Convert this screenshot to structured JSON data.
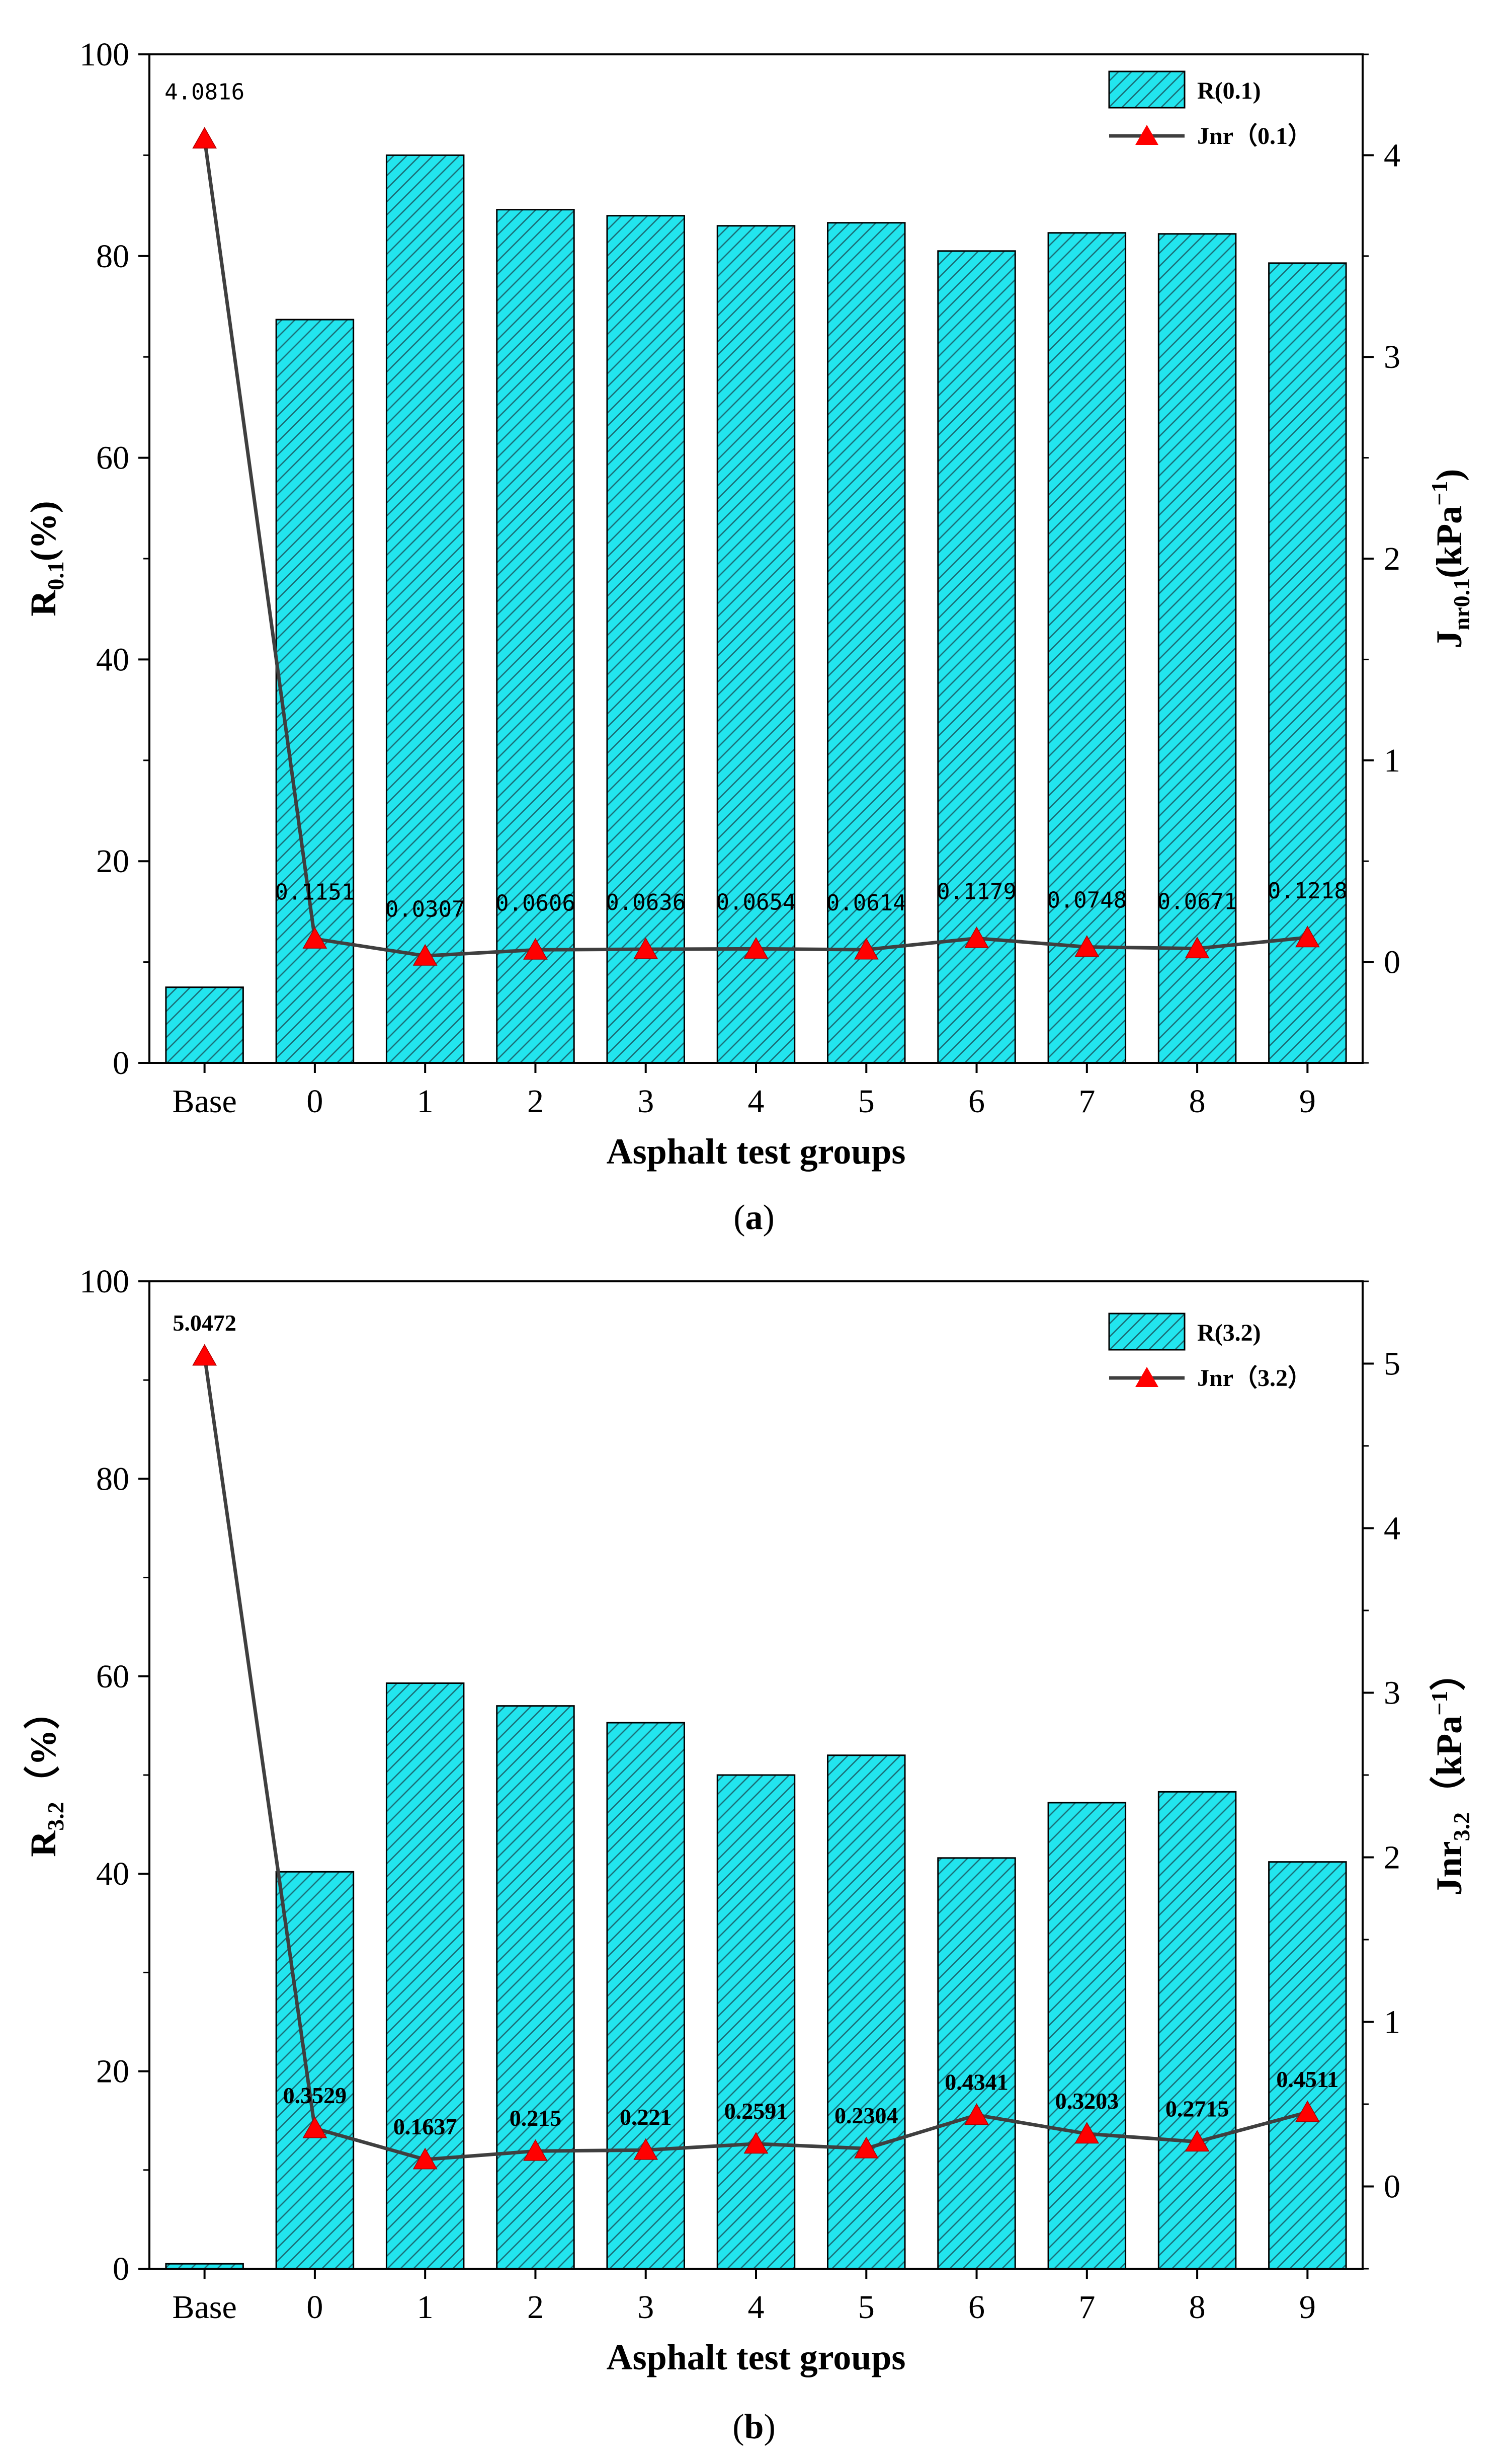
{
  "colors": {
    "bar_fill": "#22E5EE",
    "bar_hatch": "#1A6F78",
    "line": "#3F3F3F",
    "marker": "#FF0000",
    "axis": "#000000"
  },
  "chart_data": [
    {
      "type": "bar",
      "caption_letter": "a",
      "categories": [
        "Base",
        "0",
        "1",
        "2",
        "3",
        "4",
        "5",
        "6",
        "7",
        "8",
        "9"
      ],
      "xlabel": "Asphalt test groups",
      "ylabel_left": {
        "main": "R",
        "sub": "0.1",
        "rest": "(%)"
      },
      "ylabel_right": {
        "main": "J",
        "sub": "nr0.1",
        "rest": "(kPa",
        "sup": "−1",
        "close": ")"
      },
      "ylim_left": [
        0,
        100
      ],
      "yticks_left": [
        0,
        20,
        40,
        60,
        80,
        100
      ],
      "ylim_right": [
        -0.5,
        4.5
      ],
      "yticks_right": [
        0,
        1,
        2,
        3,
        4
      ],
      "series": [
        {
          "name": "R(0.1)",
          "type": "bar",
          "axis": "left",
          "values": [
            7.5,
            73.7,
            90.0,
            84.6,
            84.0,
            83.0,
            83.3,
            80.5,
            82.3,
            82.2,
            79.3
          ]
        },
        {
          "name": "Jnr（0.1）",
          "type": "line",
          "axis": "right",
          "values": [
            4.0816,
            0.1151,
            0.0307,
            0.0606,
            0.0636,
            0.0654,
            0.0614,
            0.1179,
            0.0748,
            0.0671,
            0.1218
          ],
          "data_labels": [
            "4.0816",
            "0.1151",
            "0.0307",
            "0.0606",
            "0.0636",
            "0.0654",
            "0.0614",
            "0.1179",
            "0.0748",
            "0.0671",
            "0.1218"
          ]
        }
      ],
      "legend": [
        "R(0.1)",
        "Jnr（0.1）"
      ],
      "legend_position": "top-right"
    },
    {
      "type": "bar",
      "caption_letter": "b",
      "categories": [
        "Base",
        "0",
        "1",
        "2",
        "3",
        "4",
        "5",
        "6",
        "7",
        "8",
        "9"
      ],
      "xlabel": "Asphalt test groups",
      "ylabel_left": {
        "main": "R",
        "sub": "3.2",
        "rest": "（%）"
      },
      "ylabel_right": {
        "main": "Jnr",
        "sub": "3.2",
        "rest": "（kPa",
        "sup": "−1",
        "close": "）"
      },
      "ylim_left": [
        0,
        100
      ],
      "yticks_left": [
        0,
        20,
        40,
        60,
        80,
        100
      ],
      "ylim_right": [
        -0.5,
        5.5
      ],
      "yticks_right": [
        0,
        1,
        2,
        3,
        4,
        5
      ],
      "series": [
        {
          "name": "R(3.2)",
          "type": "bar",
          "axis": "left",
          "values": [
            0.5,
            40.2,
            59.3,
            57.0,
            55.3,
            50.0,
            52.0,
            41.6,
            47.2,
            48.3,
            41.2
          ]
        },
        {
          "name": "Jnr（3.2）",
          "type": "line",
          "axis": "right",
          "values": [
            5.0472,
            0.3529,
            0.1637,
            0.215,
            0.221,
            0.2591,
            0.2304,
            0.4341,
            0.3203,
            0.2715,
            0.4511
          ],
          "data_labels": [
            "5.0472",
            "0.3529",
            "0.1637",
            "0.215",
            "0.221",
            "0.2591",
            "0.2304",
            "0.4341",
            "0.3203",
            "0.2715",
            "0.4511"
          ]
        }
      ],
      "legend": [
        "R(3.2)",
        "Jnr（3.2）"
      ],
      "legend_position": "top-right"
    }
  ]
}
